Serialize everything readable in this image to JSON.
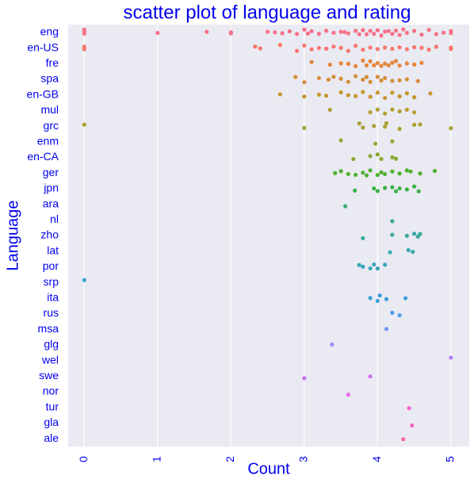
{
  "chart_data": {
    "type": "strip",
    "title": "scatter plot of language and rating",
    "x_label": "Count",
    "y_label": "Language",
    "xlim": [
      -0.22,
      5.25
    ],
    "xticks": [
      0,
      1,
      2,
      3,
      4,
      5
    ],
    "grid": true,
    "categories": [
      "eng",
      "en-US",
      "fre",
      "spa",
      "en-GB",
      "mul",
      "grc",
      "enm",
      "en-CA",
      "ger",
      "jpn",
      "ara",
      "nl",
      "zho",
      "lat",
      "por",
      "srp",
      "ita",
      "rus",
      "msa",
      "glg",
      "wel",
      "swe",
      "nor",
      "tur",
      "gla",
      "ale"
    ],
    "colors": [
      "#f77189",
      "#f7766d",
      "#e5853b",
      "#d68e3a",
      "#c6962e",
      "#b59d33",
      "#a9a133",
      "#9ca533",
      "#8aaa33",
      "#50b131",
      "#3ab246",
      "#36ad7a",
      "#37ab8e",
      "#38a9a0",
      "#39a7ae",
      "#3ba5bb",
      "#3ca3c8",
      "#3ea0d9",
      "#4d9de8",
      "#6e94f4",
      "#9e8af5",
      "#b47ef4",
      "#cb6ff4",
      "#e867ec",
      "#f262d2",
      "#f466b8",
      "#f56ca2"
    ],
    "values": [
      [
        0,
        0,
        0,
        0,
        1,
        1.67,
        2,
        2,
        2,
        2.5,
        2.6,
        2.7,
        2.8,
        2.9,
        3,
        3.05,
        3.1,
        3.2,
        3.3,
        3.4,
        3.5,
        3.55,
        3.6,
        3.7,
        3.75,
        3.8,
        3.85,
        3.9,
        3.95,
        4,
        4.05,
        4.1,
        4.15,
        4.2,
        4.25,
        4.3,
        4.35,
        4.4,
        4.5,
        4.6,
        4.7,
        4.8,
        4.9,
        5,
        5
      ],
      [
        0,
        0,
        0,
        2.33,
        2.4,
        2.67,
        2.9,
        3,
        3.1,
        3.2,
        3.3,
        3.4,
        3.5,
        3.6,
        3.7,
        3.8,
        3.9,
        4,
        4.1,
        4.2,
        4.3,
        4.4,
        4.5,
        4.6,
        4.7,
        4.8,
        5,
        5
      ],
      [
        3.1,
        3.35,
        3.5,
        3.6,
        3.7,
        3.8,
        3.85,
        3.9,
        3.95,
        4,
        4.05,
        4.1,
        4.15,
        4.2,
        4.25,
        4.3,
        4.4,
        4.5,
        4.6
      ],
      [
        2.88,
        3,
        3.2,
        3.33,
        3.4,
        3.5,
        3.6,
        3.7,
        3.8,
        3.85,
        3.9,
        4,
        4.05,
        4.1,
        4.2,
        4.3,
        4.4,
        4.55
      ],
      [
        2.67,
        3,
        3.2,
        3.3,
        3.5,
        3.6,
        3.7,
        3.8,
        3.9,
        4,
        4.1,
        4.2,
        4.3,
        4.4,
        4.5,
        4.72
      ],
      [
        3.35,
        3.9,
        4,
        4.1,
        4.2,
        4.3,
        4.4,
        4.5
      ],
      [
        0,
        3,
        3.75,
        3.8,
        3.95,
        4.1,
        4.12,
        4.3,
        4.5,
        4.58,
        5
      ],
      [
        3.5,
        3.97,
        4.2
      ],
      [
        3.67,
        3.9,
        4,
        4.05,
        4.2,
        4.25
      ],
      [
        3.42,
        3.5,
        3.6,
        3.7,
        3.8,
        3.85,
        3.9,
        4,
        4.05,
        4.1,
        4.2,
        4.3,
        4.4,
        4.45,
        4.58,
        4.78
      ],
      [
        3.69,
        3.95,
        4,
        4.1,
        4.2,
        4.25,
        4.3,
        4.4,
        4.5,
        4.56
      ],
      [
        3.56
      ],
      [
        4.2
      ],
      [
        3.8,
        4.2,
        4.4,
        4.5,
        4.55,
        4.58
      ],
      [
        4.17,
        4.42,
        4.48
      ],
      [
        3.75,
        3.8,
        3.9,
        3.95,
        4,
        4.1
      ],
      [
        0
      ],
      [
        3.9,
        4,
        4.03,
        4.12,
        4.38
      ],
      [
        4.2,
        4.3
      ],
      [
        4.12
      ],
      [
        3.38
      ],
      [
        5
      ],
      [
        3,
        3.9
      ],
      [
        3.6
      ],
      [
        4.43
      ],
      [
        4.47
      ],
      [
        4.35
      ]
    ]
  }
}
